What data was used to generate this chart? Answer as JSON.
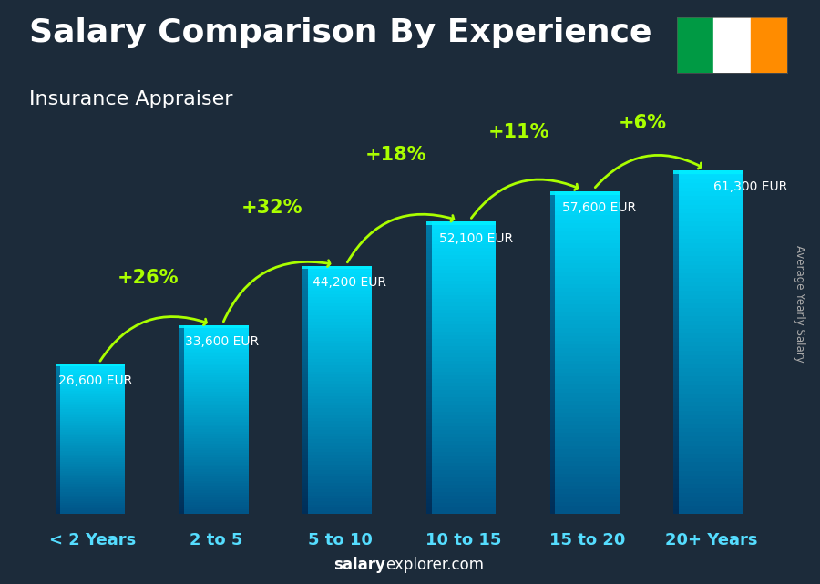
{
  "title": "Salary Comparison By Experience",
  "subtitle": "Insurance Appraiser",
  "ylabel": "Average Yearly Salary",
  "watermark_bold": "salary",
  "watermark_normal": "explorer.com",
  "categories": [
    "< 2 Years",
    "2 to 5",
    "5 to 10",
    "10 to 15",
    "15 to 20",
    "20+ Years"
  ],
  "values": [
    26600,
    33600,
    44200,
    52100,
    57600,
    61300
  ],
  "labels": [
    "26,600 EUR",
    "33,600 EUR",
    "44,200 EUR",
    "52,100 EUR",
    "57,600 EUR",
    "61,300 EUR"
  ],
  "pct_labels": [
    "+26%",
    "+32%",
    "+18%",
    "+11%",
    "+6%"
  ],
  "background_color": "#1c2b3a",
  "title_color": "#ffffff",
  "subtitle_color": "#ffffff",
  "label_color": "#ffffff",
  "pct_color": "#aaff00",
  "cat_color": "#55ddff",
  "ylabel_color": "#aaaaaa",
  "watermark_color": "#ffffff",
  "flag_green": "#009a44",
  "flag_white": "#ffffff",
  "flag_orange": "#ff8c00",
  "title_fontsize": 26,
  "subtitle_fontsize": 16,
  "label_fontsize": 10,
  "pct_fontsize": 15,
  "cat_fontsize": 13,
  "watermark_fontsize": 12,
  "bar_bottom_color": "#005577",
  "bar_top_color": "#00ddff",
  "bar_edge_color": "#004466",
  "ylim_max": 75000
}
